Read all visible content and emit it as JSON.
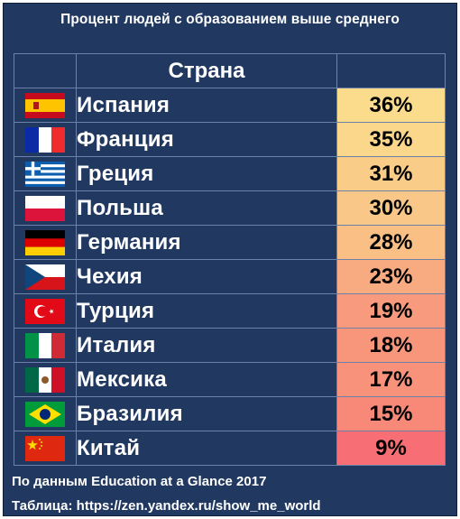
{
  "title": "Процент людей с образованием выше среднего",
  "column_header": "Страна",
  "footer": {
    "source": "По данным Education at a Glance 2017",
    "credit": "Таблица: https://zen.yandex.ru/show_me_world"
  },
  "chart_data": {
    "type": "table",
    "title": "Процент людей с образованием выше среднего",
    "columns": [
      "Страна",
      ""
    ],
    "rows": [
      {
        "flag": "spain-flag-icon",
        "country": "Испания",
        "value": 36,
        "label": "36%",
        "color": "#fadc8c"
      },
      {
        "flag": "france-flag-icon",
        "country": "Франция",
        "value": 35,
        "label": "35%",
        "color": "#fad78b"
      },
      {
        "flag": "greece-flag-icon",
        "country": "Греция",
        "value": 31,
        "label": "31%",
        "color": "#f9cc88"
      },
      {
        "flag": "poland-flag-icon",
        "country": "Польша",
        "value": 30,
        "label": "30%",
        "color": "#f9c787"
      },
      {
        "flag": "germany-flag-icon",
        "country": "Германия",
        "value": 28,
        "label": "28%",
        "color": "#f9bf85"
      },
      {
        "flag": "czech-flag-icon",
        "country": "Чехия",
        "value": 23,
        "label": "23%",
        "color": "#f8ab80"
      },
      {
        "flag": "turkey-flag-icon",
        "country": "Турция",
        "value": 19,
        "label": "19%",
        "color": "#f89a7d"
      },
      {
        "flag": "italy-flag-icon",
        "country": "Италия",
        "value": 18,
        "label": "18%",
        "color": "#f8967c"
      },
      {
        "flag": "mexico-flag-icon",
        "country": "Мексика",
        "value": 17,
        "label": "17%",
        "color": "#f8927b"
      },
      {
        "flag": "brazil-flag-icon",
        "country": "Бразилия",
        "value": 15,
        "label": "15%",
        "color": "#f88979"
      },
      {
        "flag": "china-flag-icon",
        "country": "Китай",
        "value": 9,
        "label": "9%",
        "color": "#f76f75"
      }
    ]
  }
}
